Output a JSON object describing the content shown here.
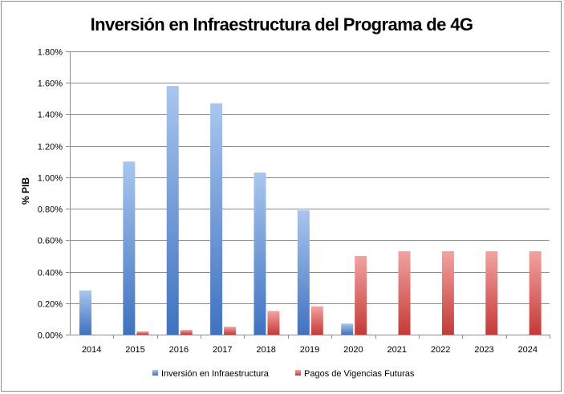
{
  "chart_data": {
    "type": "bar",
    "title": "Inversión en Infraestructura del Programa de 4G",
    "xlabel": "",
    "ylabel": "% PIB",
    "ylim": [
      0,
      0.018
    ],
    "ytick_values": [
      0,
      0.002,
      0.004,
      0.006,
      0.008,
      0.01,
      0.012,
      0.014,
      0.016,
      0.018
    ],
    "ytick_labels": [
      "0.00%",
      "0.20%",
      "0.40%",
      "0.60%",
      "0.80%",
      "1.00%",
      "1.20%",
      "1.40%",
      "1.60%",
      "1.80%"
    ],
    "categories": [
      "2014",
      "2015",
      "2016",
      "2017",
      "2018",
      "2019",
      "2020",
      "2021",
      "2022",
      "2023",
      "2024"
    ],
    "grid": "horizontal",
    "legend_position": "bottom",
    "series": [
      {
        "name": "Inversión en Infraestructura",
        "color": "#4f81bd",
        "values": [
          0.0028,
          0.011,
          0.0158,
          0.0147,
          0.0103,
          0.0079,
          0.0007,
          0,
          0,
          0,
          0
        ]
      },
      {
        "name": "Pagos de Vigencias Futuras",
        "color": "#c0504d",
        "values": [
          0,
          0.0002,
          0.0003,
          0.0005,
          0.0015,
          0.0018,
          0.005,
          0.0053,
          0.0053,
          0.0053,
          0.0053
        ]
      }
    ]
  }
}
